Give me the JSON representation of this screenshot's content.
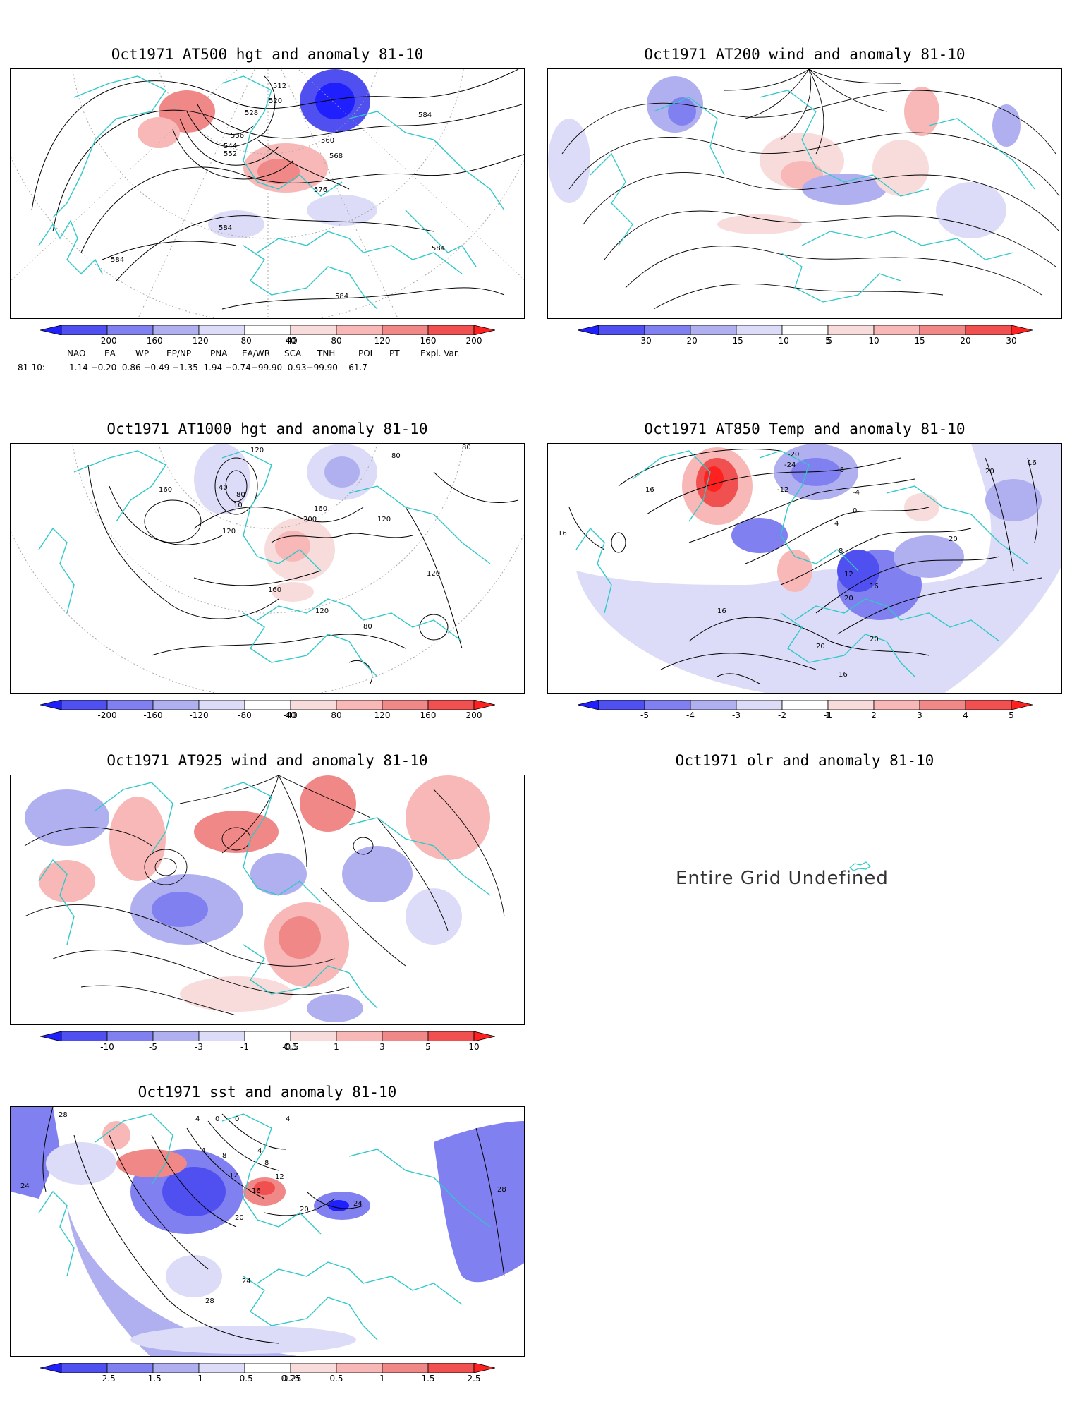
{
  "panels": [
    {
      "id": "p500",
      "title": "Oct1971 AT500 hgt and anomaly 81-10",
      "contour_labels": [
        "512",
        "520",
        "528",
        "536",
        "544",
        "552",
        "560",
        "568",
        "576",
        "584",
        "584",
        "584",
        "584",
        "584"
      ],
      "colorbar": [
        "-200",
        "-160",
        "-120",
        "-80",
        "-40",
        "40",
        "80",
        "120",
        "160",
        "200"
      ]
    },
    {
      "id": "p200",
      "title": "Oct1971 AT200 wind and anomaly 81-10",
      "colorbar": [
        "-30",
        "-20",
        "-15",
        "-10",
        "-5",
        "5",
        "10",
        "15",
        "20",
        "30"
      ]
    },
    {
      "id": "p1000",
      "title": "Oct1971 AT1000 hgt and anomaly 81-10",
      "contour_labels": [
        "120",
        "160",
        "40",
        "80",
        "10",
        "200",
        "160",
        "120",
        "80",
        "120",
        "160",
        "120",
        "120",
        "80",
        "80"
      ],
      "colorbar": [
        "-200",
        "-160",
        "-120",
        "-80",
        "-40",
        "40",
        "80",
        "120",
        "160",
        "200"
      ]
    },
    {
      "id": "p850",
      "title": "Oct1971 AT850 Temp and anomaly 81-10",
      "contour_labels": [
        "16",
        "-20",
        "-24",
        "-8",
        "-12",
        "-4",
        "0",
        "4",
        "8",
        "12",
        "16",
        "20",
        "20",
        "20",
        "16",
        "16",
        "20",
        "16",
        "16",
        "20"
      ],
      "colorbar": [
        "-5",
        "-4",
        "-3",
        "-2",
        "-1",
        "1",
        "2",
        "3",
        "4",
        "5"
      ]
    },
    {
      "id": "p925",
      "title": "Oct1971 AT925 wind and anomaly 81-10",
      "colorbar": [
        "-10",
        "-5",
        "-3",
        "-1",
        "-0.5",
        "0.5",
        "1",
        "3",
        "5",
        "10"
      ]
    },
    {
      "id": "polr",
      "title": "Oct1971 olr and anomaly 81-10",
      "message": "Entire Grid Undefined"
    },
    {
      "id": "psst",
      "title": "Oct1971 sst and anomaly 81-10",
      "contour_labels": [
        "28",
        "4",
        "0",
        "0",
        "4",
        "4",
        "8",
        "4",
        "8",
        "12",
        "12",
        "16",
        "20",
        "20",
        "24",
        "24",
        "28",
        "28",
        "24"
      ],
      "colorbar": [
        "-2.5",
        "-1.5",
        "-1",
        "-0.5",
        "-0.25",
        "0.25",
        "0.5",
        "1",
        "1.5",
        "2.5"
      ]
    }
  ],
  "indices": {
    "headers": [
      "NAO",
      "EA",
      "WP",
      "EP/NP",
      "PNA",
      "EA/WR",
      "SCA",
      "TNH",
      "POL",
      "PT",
      "Expl. Var."
    ],
    "row_label": "81-10:",
    "values": "1.14 −0.20  0.86 −0.49 −1.35  1.94 −0.74−99.90  0.93−99.90    61.7"
  },
  "colors": {
    "blue5": "#2020ff",
    "blue4": "#5050f0",
    "blue3": "#8080f0",
    "blue2": "#b0b0f0",
    "blue1": "#dcdcf8",
    "red1": "#f8dcdc",
    "red2": "#f8b8b8",
    "red3": "#f08888",
    "red4": "#f05050",
    "red5": "#ff2020",
    "coast": "#30c8c8"
  }
}
